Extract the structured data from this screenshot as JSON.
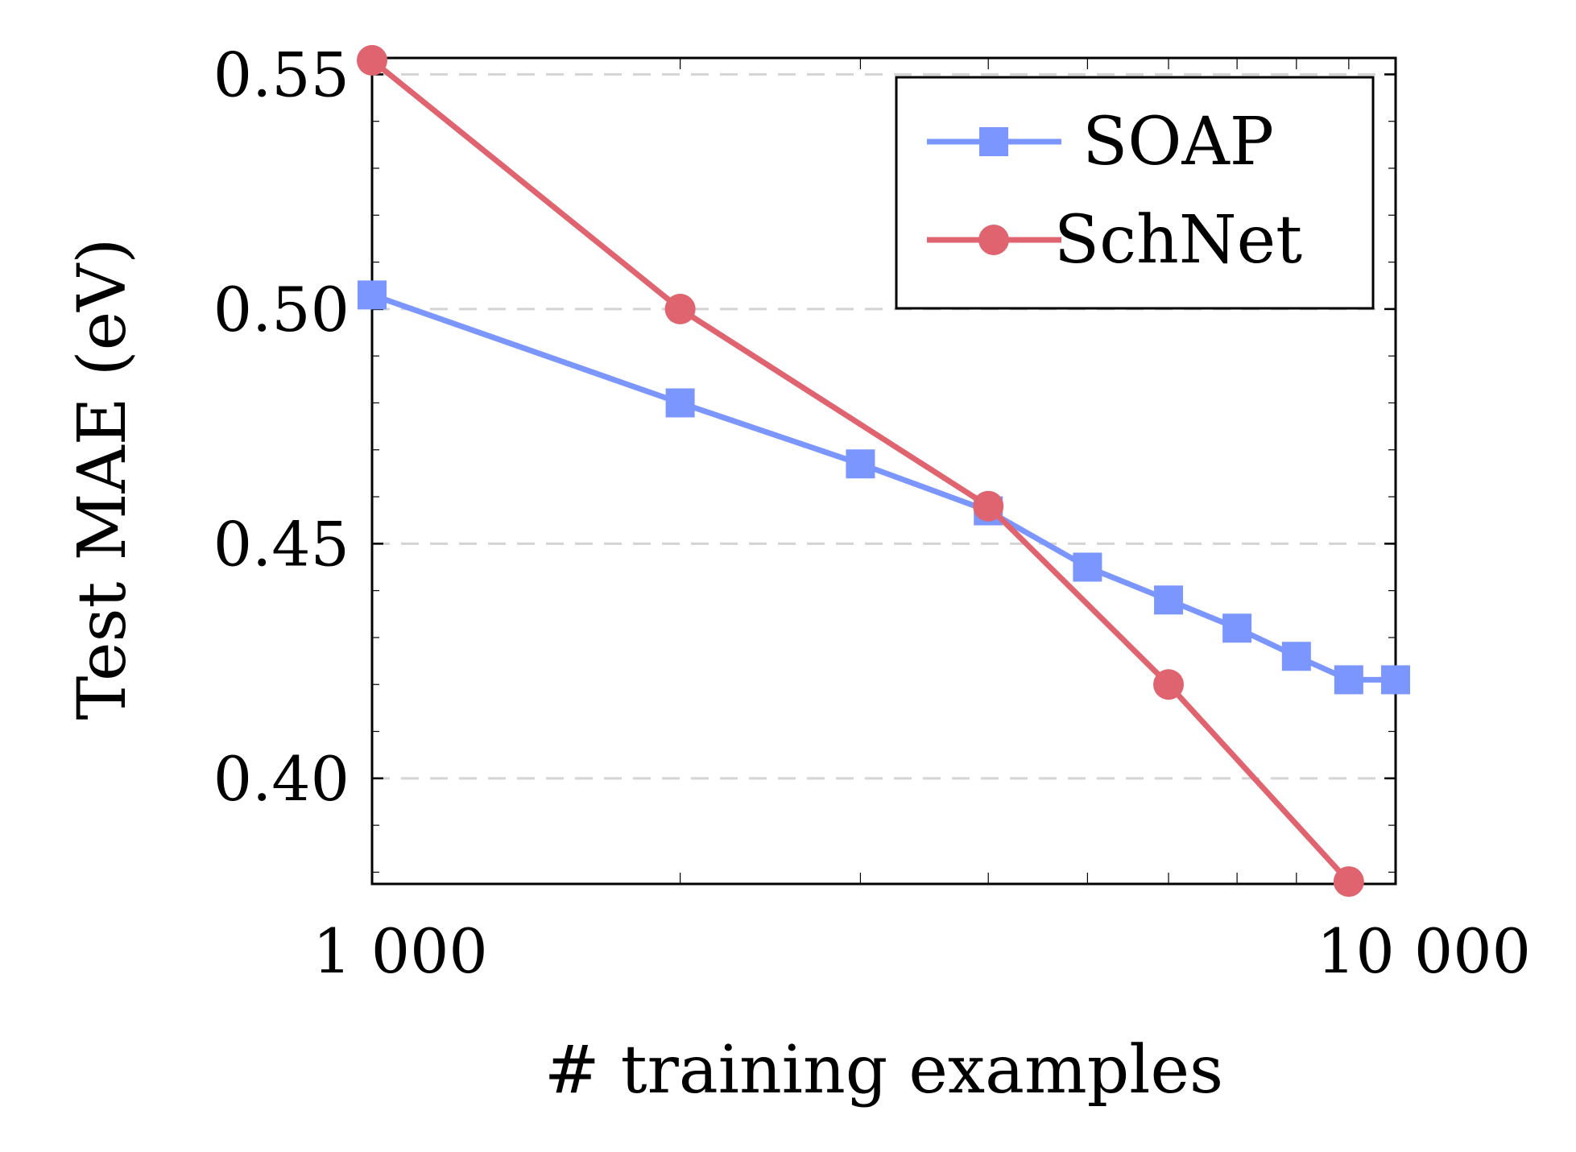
{
  "chart_data": {
    "type": "line",
    "xlabel": "# training examples",
    "ylabel": "Test MAE (eV)",
    "xscale": "log",
    "xlim": [
      1000,
      10000
    ],
    "ylim": [
      0.3775,
      0.5535
    ],
    "grid": "horizontal dashed at major y ticks",
    "legend_position": "top-right",
    "x_ticks": [
      {
        "value": 1000,
        "label": "1 000"
      },
      {
        "value": 10000,
        "label": "10 000"
      }
    ],
    "y_ticks": [
      {
        "value": 0.4,
        "label": "0.40"
      },
      {
        "value": 0.45,
        "label": "0.45"
      },
      {
        "value": 0.5,
        "label": "0.50"
      },
      {
        "value": 0.55,
        "label": "0.55"
      }
    ],
    "series": [
      {
        "name": "SOAP",
        "color": "#7b96ff",
        "marker": "square",
        "x": [
          1000,
          2000,
          3000,
          4000,
          5000,
          6000,
          7000,
          8000,
          9000,
          10000
        ],
        "y": [
          0.503,
          0.48,
          0.467,
          0.457,
          0.445,
          0.438,
          0.432,
          0.426,
          0.421,
          0.421
        ]
      },
      {
        "name": "SchNet",
        "color": "#e06470",
        "marker": "circle",
        "x": [
          1000,
          2000,
          4000,
          6000,
          9000
        ],
        "y": [
          0.553,
          0.5,
          0.458,
          0.42,
          0.378
        ]
      }
    ]
  }
}
